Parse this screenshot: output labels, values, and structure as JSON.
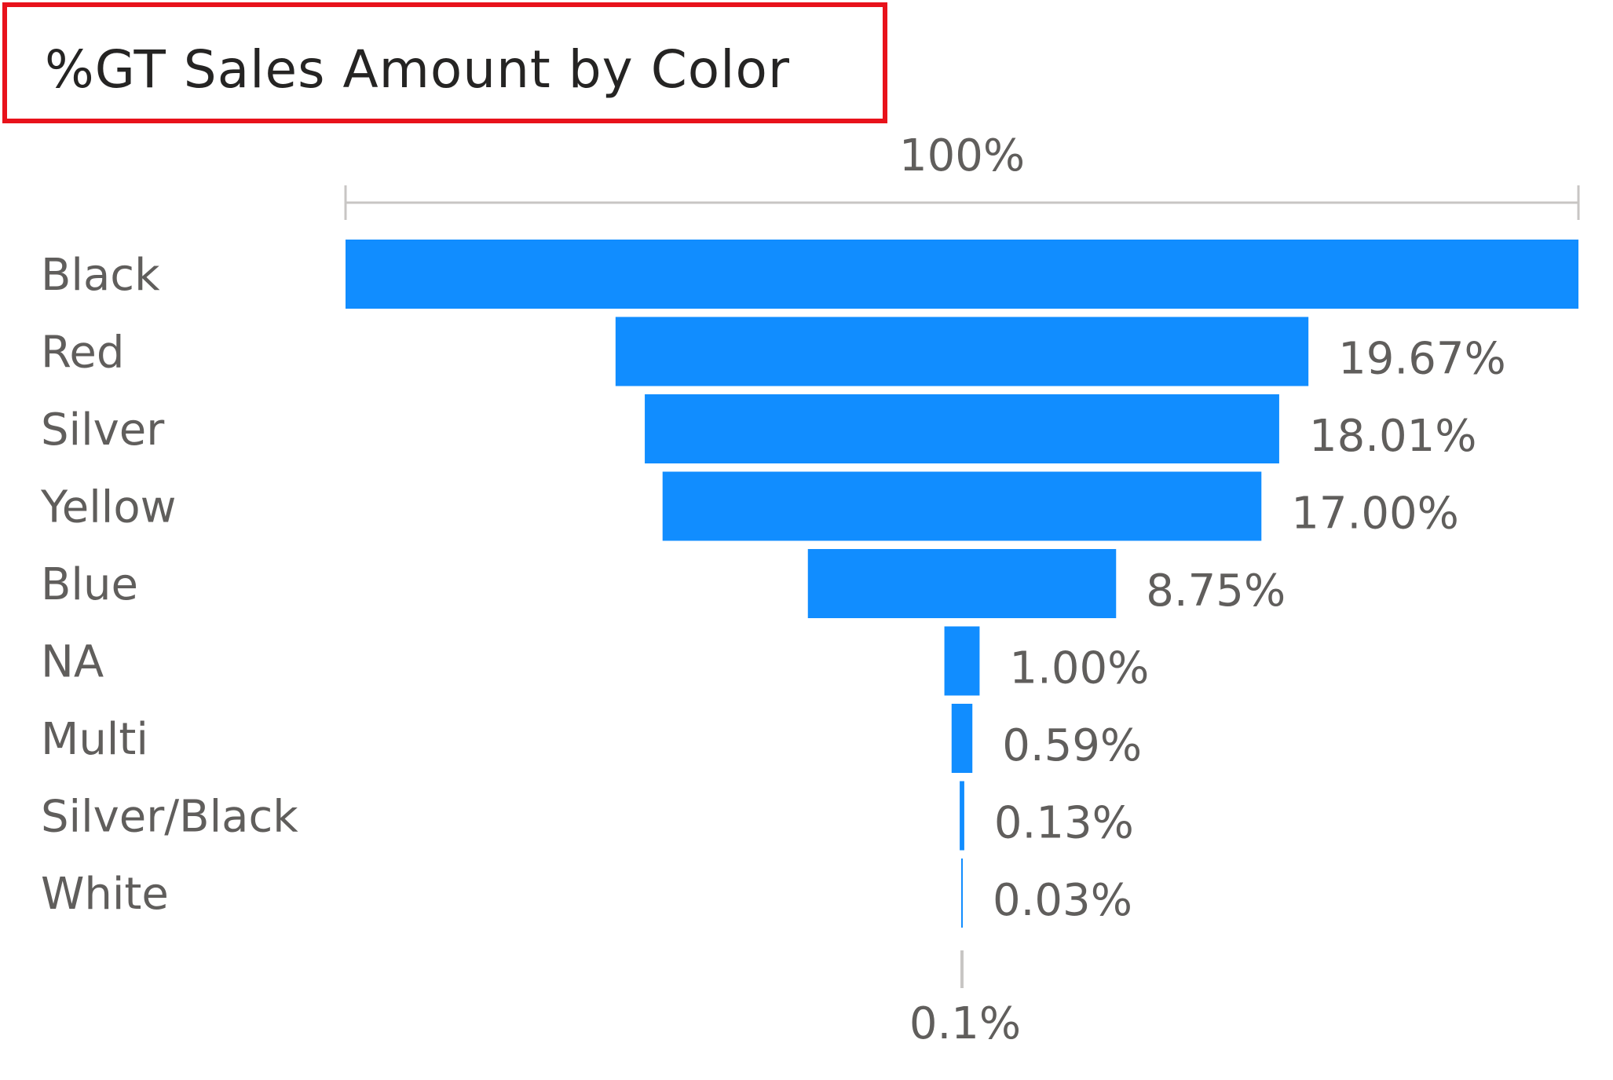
{
  "colors": {
    "bar": "#118dff",
    "text": "#605e5c",
    "title": "#252423",
    "title_border": "#e8121b",
    "axis": "#c8c6c4"
  },
  "chart_data": {
    "type": "funnel",
    "title": "%GT Sales Amount by Color",
    "categories": [
      "Black",
      "Red",
      "Silver",
      "Yellow",
      "Blue",
      "NA",
      "Multi",
      "Silver/Black",
      "White"
    ],
    "values": [
      35.0,
      19.67,
      18.01,
      17.0,
      8.75,
      1.0,
      0.59,
      0.13,
      0.03
    ],
    "value_labels": [
      "",
      "19.67%",
      "18.01%",
      "17.00%",
      "8.75%",
      "1.00%",
      "0.59%",
      "0.13%",
      "0.03%"
    ],
    "top_reference_label": "100%",
    "bottom_reference_label": "0.1%"
  }
}
